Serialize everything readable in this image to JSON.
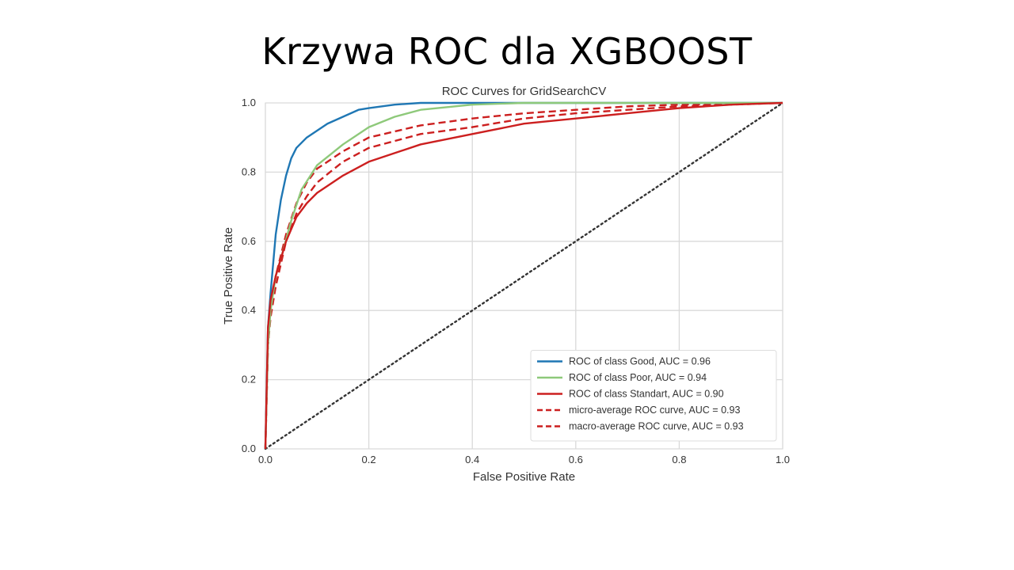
{
  "slide": {
    "title": "Krzywa ROC dla XGBOOST"
  },
  "chart_data": {
    "type": "line",
    "title": "ROC Curves for GridSearchCV",
    "xlabel": "False Positive Rate",
    "ylabel": "True Positive Rate",
    "xlim": [
      0,
      1
    ],
    "ylim": [
      0,
      1
    ],
    "x_ticks": [
      "0.0",
      "0.2",
      "0.4",
      "0.6",
      "0.8",
      "1.0"
    ],
    "y_ticks": [
      "0.0",
      "0.2",
      "0.4",
      "0.6",
      "0.8",
      "1.0"
    ],
    "grid": true,
    "legend_position": "bottom-right",
    "series": [
      {
        "name": "ROC of class Good, AUC = 0.96",
        "color": "#1f77b4",
        "style": "solid",
        "x": [
          0,
          0.005,
          0.01,
          0.02,
          0.03,
          0.04,
          0.05,
          0.06,
          0.08,
          0.1,
          0.12,
          0.15,
          0.18,
          0.2,
          0.25,
          0.3,
          0.4,
          0.5,
          1.0
        ],
        "y": [
          0,
          0.35,
          0.45,
          0.62,
          0.72,
          0.79,
          0.84,
          0.87,
          0.9,
          0.92,
          0.94,
          0.96,
          0.98,
          0.985,
          0.995,
          1.0,
          1.0,
          1.0,
          1.0
        ]
      },
      {
        "name": "ROC of class Poor, AUC = 0.94",
        "color": "#8ec97a",
        "style": "solid",
        "x": [
          0,
          0.005,
          0.01,
          0.02,
          0.03,
          0.05,
          0.07,
          0.1,
          0.15,
          0.2,
          0.25,
          0.3,
          0.4,
          0.5,
          0.6,
          1.0
        ],
        "y": [
          0,
          0.3,
          0.4,
          0.5,
          0.55,
          0.66,
          0.75,
          0.82,
          0.88,
          0.93,
          0.96,
          0.98,
          0.995,
          1.0,
          1.0,
          1.0
        ]
      },
      {
        "name": "ROC of class Standart, AUC = 0.90",
        "color": "#cc1f1f",
        "style": "solid",
        "x": [
          0,
          0.005,
          0.01,
          0.02,
          0.04,
          0.06,
          0.08,
          0.1,
          0.15,
          0.2,
          0.3,
          0.4,
          0.5,
          0.6,
          0.7,
          0.8,
          0.9,
          1.0
        ],
        "y": [
          0,
          0.35,
          0.43,
          0.5,
          0.6,
          0.67,
          0.71,
          0.74,
          0.79,
          0.83,
          0.88,
          0.91,
          0.94,
          0.955,
          0.97,
          0.985,
          0.995,
          1.0
        ]
      },
      {
        "name": "micro-average ROC curve, AUC = 0.93",
        "color": "#cc1f1f",
        "style": "dashed",
        "x": [
          0,
          0.005,
          0.01,
          0.02,
          0.04,
          0.06,
          0.08,
          0.1,
          0.15,
          0.2,
          0.3,
          0.4,
          0.5,
          0.6,
          0.7,
          0.8,
          1.0
        ],
        "y": [
          0,
          0.3,
          0.4,
          0.5,
          0.62,
          0.71,
          0.77,
          0.81,
          0.86,
          0.9,
          0.935,
          0.955,
          0.97,
          0.98,
          0.99,
          0.995,
          1.0
        ]
      },
      {
        "name": "macro-average ROC curve, AUC = 0.93",
        "color": "#cc1f1f",
        "style": "dashed",
        "x": [
          0,
          0.005,
          0.01,
          0.02,
          0.04,
          0.06,
          0.08,
          0.1,
          0.15,
          0.2,
          0.3,
          0.4,
          0.5,
          0.6,
          0.7,
          0.8,
          1.0
        ],
        "y": [
          0,
          0.3,
          0.38,
          0.47,
          0.6,
          0.68,
          0.73,
          0.77,
          0.83,
          0.87,
          0.91,
          0.93,
          0.955,
          0.97,
          0.98,
          0.99,
          1.0
        ]
      }
    ],
    "reference_line": {
      "style": "dotted",
      "color": "#333333",
      "x": [
        0,
        1
      ],
      "y": [
        0,
        1
      ]
    }
  }
}
